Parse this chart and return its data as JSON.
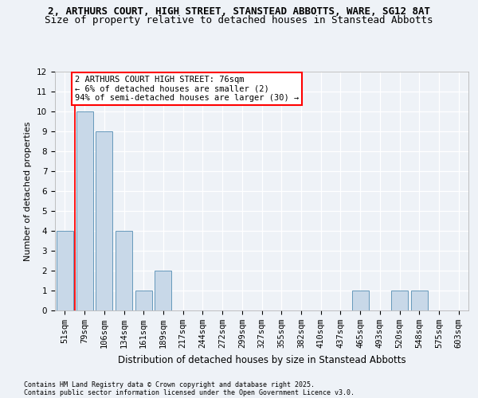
{
  "title1": "2, ARTHURS COURT, HIGH STREET, STANSTEAD ABBOTTS, WARE, SG12 8AT",
  "title2": "Size of property relative to detached houses in Stanstead Abbotts",
  "xlabel": "Distribution of detached houses by size in Stanstead Abbotts",
  "ylabel": "Number of detached properties",
  "categories": [
    "51sqm",
    "79sqm",
    "106sqm",
    "134sqm",
    "161sqm",
    "189sqm",
    "217sqm",
    "244sqm",
    "272sqm",
    "299sqm",
    "327sqm",
    "355sqm",
    "382sqm",
    "410sqm",
    "437sqm",
    "465sqm",
    "493sqm",
    "520sqm",
    "548sqm",
    "575sqm",
    "603sqm"
  ],
  "values": [
    4,
    10,
    9,
    4,
    1,
    2,
    0,
    0,
    0,
    0,
    0,
    0,
    0,
    0,
    0,
    1,
    0,
    1,
    1,
    0,
    0
  ],
  "bar_color": "#c8d8e8",
  "bar_edgecolor": "#6699bb",
  "redline_index": 1,
  "ylim": [
    0,
    12
  ],
  "yticks": [
    0,
    1,
    2,
    3,
    4,
    5,
    6,
    7,
    8,
    9,
    10,
    11,
    12
  ],
  "annotation_text": "2 ARTHURS COURT HIGH STREET: 76sqm\n← 6% of detached houses are smaller (2)\n94% of semi-detached houses are larger (30) →",
  "footer1": "Contains HM Land Registry data © Crown copyright and database right 2025.",
  "footer2": "Contains public sector information licensed under the Open Government Licence v3.0.",
  "bg_color": "#eef2f7",
  "grid_color": "#ffffff",
  "title1_fontsize": 9,
  "title2_fontsize": 9,
  "ylabel_fontsize": 8,
  "xlabel_fontsize": 8.5,
  "tick_fontsize": 7.5,
  "footer_fontsize": 6,
  "ann_fontsize": 7.5
}
